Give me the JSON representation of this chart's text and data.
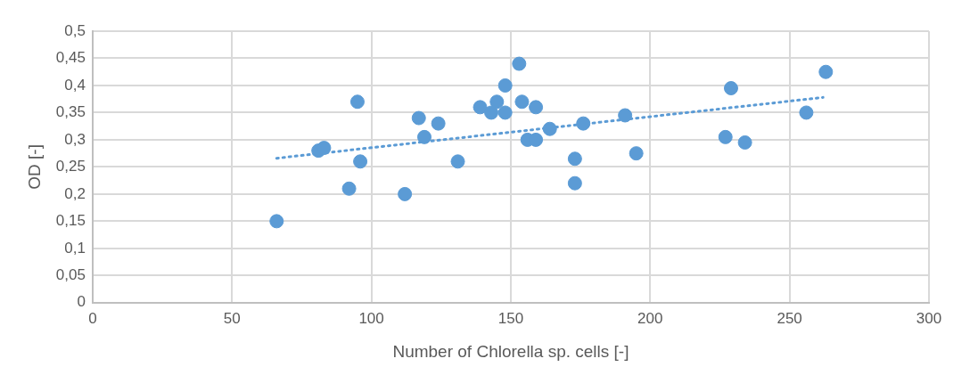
{
  "chart_data": {
    "type": "scatter",
    "xlabel": "Number of Chlorella sp. cells [-]",
    "ylabel": "OD [-]",
    "xlim": [
      0,
      300
    ],
    "xticks": [
      0,
      50,
      100,
      150,
      200,
      250,
      300
    ],
    "ylim": [
      0,
      0.5
    ],
    "yticks": [
      0,
      {
        "value": 0.05,
        "label": "0,05"
      },
      {
        "value": 0.1,
        "label": "0,1"
      },
      {
        "value": 0.15,
        "label": "0,15"
      },
      {
        "value": 0.2,
        "label": "0,2"
      },
      {
        "value": 0.25,
        "label": "0,25"
      },
      {
        "value": 0.3,
        "label": "0,3"
      },
      {
        "value": 0.35,
        "label": "0,35"
      },
      {
        "value": 0.4,
        "label": "0,4"
      },
      {
        "value": 0.45,
        "label": "0,45"
      },
      {
        "value": 0.5,
        "label": "0,5"
      }
    ],
    "grid": true,
    "legend": false,
    "series": [
      {
        "type": "scatter",
        "color": "#5b9bd5",
        "marker": "circle",
        "x": [
          66,
          81,
          83,
          92,
          95,
          96,
          112,
          117,
          119,
          124,
          131,
          139,
          143,
          145,
          148,
          148,
          153,
          154,
          156,
          159,
          159,
          164,
          176,
          173,
          173,
          191,
          195,
          227,
          229,
          234,
          256,
          263
        ],
        "values": [
          0.15,
          0.28,
          0.285,
          0.21,
          0.37,
          0.26,
          0.2,
          0.34,
          0.305,
          0.33,
          0.26,
          0.36,
          0.35,
          0.37,
          0.35,
          0.4,
          0.44,
          0.37,
          0.3,
          0.36,
          0.3,
          0.32,
          0.33,
          0.265,
          0.22,
          0.345,
          0.275,
          0.305,
          0.395,
          0.295,
          0.35,
          0.425
        ]
      },
      {
        "type": "line",
        "color": "#5b9bd5",
        "marker": "none",
        "line_style": "dotted",
        "x": [
          66,
          262
        ],
        "values": [
          0.266,
          0.378
        ]
      }
    ]
  }
}
